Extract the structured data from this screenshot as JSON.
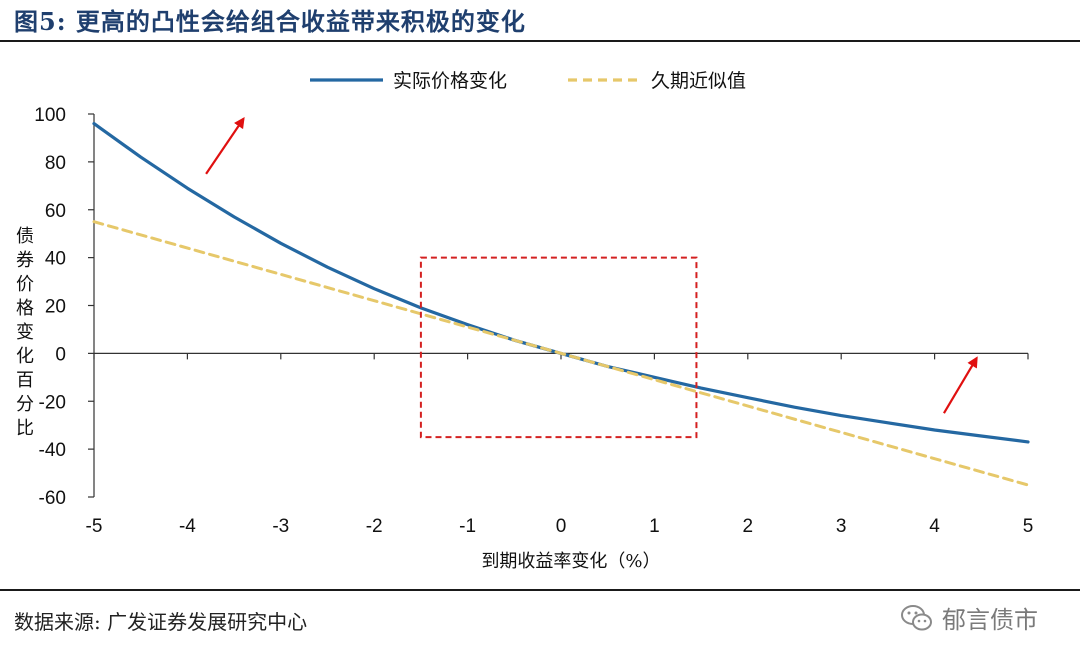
{
  "figure": {
    "title": "图5:  更高的凸性会给组合收益带来积极的变化",
    "source": "数据来源:  广发证券发展研究中心",
    "watermark": "郁言债市"
  },
  "chart_data": {
    "type": "line",
    "title": "图5:  更高的凸性会给组合收益带来积极的变化",
    "xlabel": "到期收益率变化（%）",
    "ylabel": "债券价格变化百分比",
    "xlim": [
      -5,
      5
    ],
    "ylim": [
      -60,
      100
    ],
    "x_ticks": [
      -5,
      -4,
      -3,
      -2,
      -1,
      0,
      1,
      2,
      3,
      4,
      5
    ],
    "y_ticks": [
      100,
      80,
      60,
      40,
      20,
      0,
      -20,
      -40,
      -60
    ],
    "legend_position": "top-center",
    "grid": false,
    "series": [
      {
        "name": "实际价格变化",
        "color": "#2468a2",
        "style": "solid",
        "x": [
          -5,
          -4.5,
          -4,
          -3.5,
          -3,
          -2.5,
          -2,
          -1.5,
          -1,
          -0.5,
          0,
          0.5,
          1,
          1.5,
          2,
          2.5,
          3,
          3.5,
          4,
          4.5,
          5
        ],
        "values": [
          96,
          82,
          69,
          57,
          46,
          36,
          27,
          19,
          12,
          5.5,
          0,
          -5.5,
          -10,
          -14.5,
          -18.5,
          -22.5,
          -26,
          -29,
          -32,
          -34.5,
          -37
        ]
      },
      {
        "name": "久期近似值",
        "color": "#e6c86a",
        "style": "dashed",
        "x": [
          -5,
          5
        ],
        "values": [
          55,
          -55
        ]
      }
    ],
    "annotations": [
      {
        "type": "dashed-rectangle",
        "color": "#d42020",
        "x_range": [
          -1.5,
          1.45
        ],
        "y_range": [
          -35,
          40
        ]
      },
      {
        "type": "arrow",
        "color": "#e01010",
        "from": [
          -3.8,
          75
        ],
        "to": [
          -3.4,
          98
        ]
      },
      {
        "type": "arrow",
        "color": "#e01010",
        "from": [
          4.1,
          -25
        ],
        "to": [
          4.45,
          -2
        ]
      }
    ]
  }
}
